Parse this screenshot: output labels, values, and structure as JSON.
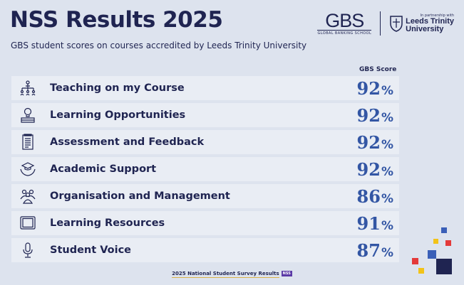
{
  "header": {
    "title": "NSS Results 2025",
    "subtitle": "GBS student scores on courses accredited by Leeds Trinity University"
  },
  "logos": {
    "gbs_name": "GBS",
    "gbs_sub": "GLOBAL BANKING SCHOOL",
    "partner_text": "In partnership with",
    "ltu_line1": "Leeds Trinity",
    "ltu_line2": "University"
  },
  "table": {
    "score_header": "GBS Score",
    "rows": [
      {
        "label": "Teaching on my Course",
        "score": "92",
        "icon": "teaching-icon"
      },
      {
        "label": "Learning Opportunities",
        "score": "92",
        "icon": "lightbulb-book-icon"
      },
      {
        "label": "Assessment and Feedback",
        "score": "92",
        "icon": "document-icon"
      },
      {
        "label": "Academic Support",
        "score": "92",
        "icon": "graduation-hands-icon"
      },
      {
        "label": "Organisation and Management",
        "score": "86",
        "icon": "people-group-icon"
      },
      {
        "label": "Learning Resources",
        "score": "91",
        "icon": "tablet-icon"
      },
      {
        "label": "Student Voice",
        "score": "87",
        "icon": "microphone-icon"
      }
    ],
    "percent_sign": "%"
  },
  "footer": {
    "text": "2025 National Student Survey Results",
    "badge": "NSS"
  },
  "colors": {
    "navy": "#1f2451",
    "score_blue": "#3356a4",
    "row_bg": "#e9edf4",
    "page_bg": "#dde3ee"
  }
}
